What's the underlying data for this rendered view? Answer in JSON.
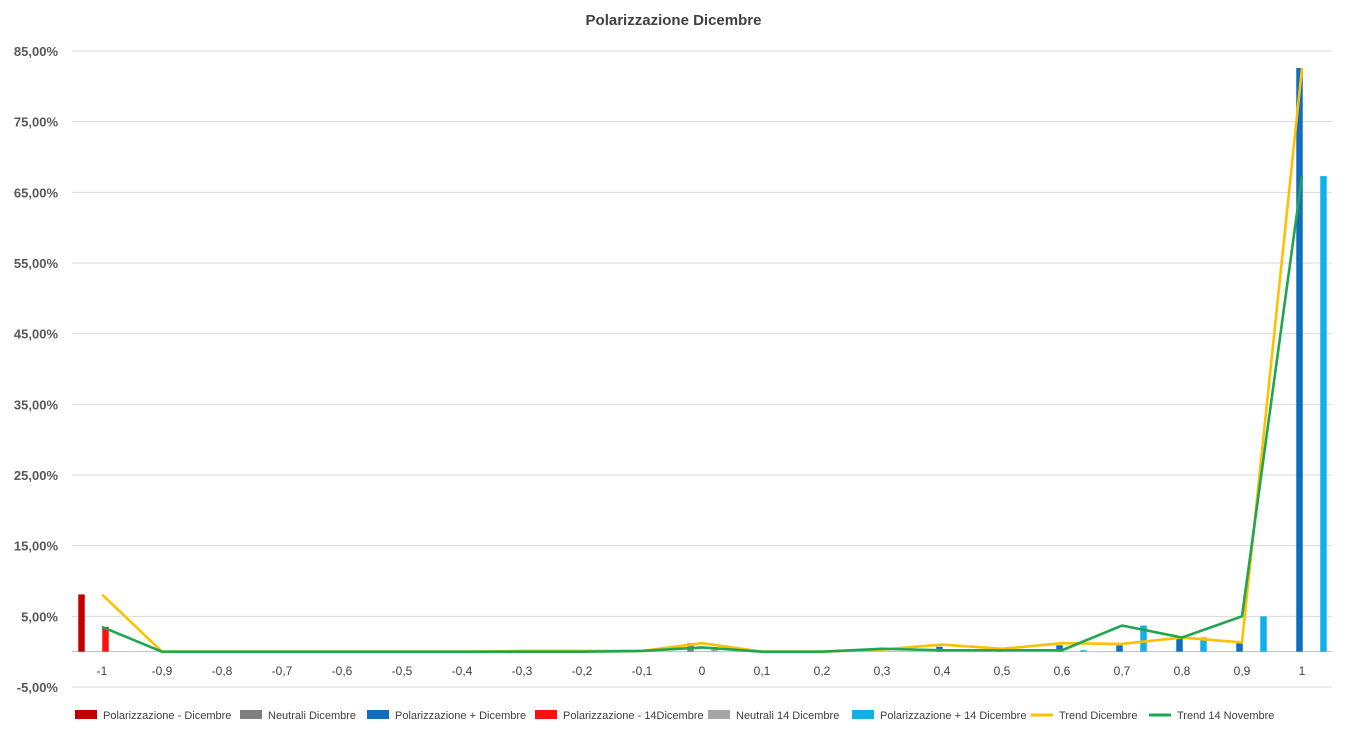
{
  "chart_data": {
    "type": "bar",
    "title": "Polarizzazione Dicembre",
    "xlabel": "",
    "ylabel": "",
    "ylim": [
      -5,
      85
    ],
    "y_ticks": [
      "85,00%",
      "75,00%",
      "65,00%",
      "55,00%",
      "45,00%",
      "35,00%",
      "25,00%",
      "15,00%",
      "5,00%",
      "-5,00%"
    ],
    "y_tick_values": [
      85,
      75,
      65,
      55,
      45,
      35,
      25,
      15,
      5,
      -5
    ],
    "categories": [
      "-1",
      "-0,9",
      "-0,8",
      "-0,7",
      "-0,6",
      "-0,5",
      "-0,4",
      "-0,3",
      "-0,2",
      "-0,1",
      "0",
      "0,1",
      "0,2",
      "0,3",
      "0,4",
      "0,5",
      "0,6",
      "0,7",
      "0,8",
      "0,9",
      "1"
    ],
    "grid": true,
    "legend_position": "bottom",
    "series": [
      {
        "name": "Polarizzazione - Dicembre",
        "kind": "bar",
        "color": "#C00000",
        "values": [
          8.1,
          0,
          0,
          0,
          0,
          0,
          0,
          0,
          0,
          0,
          0,
          0,
          0,
          0,
          0,
          0,
          0,
          0,
          0,
          0,
          0
        ]
      },
      {
        "name": "Neutrali Dicembre",
        "kind": "bar",
        "color": "#7F7F7F",
        "values": [
          0,
          0,
          0,
          0,
          0,
          0,
          0,
          0,
          0,
          0,
          1.2,
          0,
          0,
          0,
          0,
          0,
          0,
          0,
          0,
          0,
          0
        ]
      },
      {
        "name": "Polarizzazione + Dicembre",
        "kind": "bar",
        "color": "#0F6FBE",
        "values": [
          0,
          0,
          0,
          0,
          0,
          0,
          0,
          0,
          0,
          0,
          0,
          0,
          0,
          0,
          0.7,
          0.4,
          0.9,
          0.9,
          2.0,
          1.2,
          82.6
        ]
      },
      {
        "name": "Polarizzazione - 14Dicembre",
        "kind": "bar",
        "color": "#FF1010",
        "values": [
          3.5,
          0,
          0,
          0,
          0,
          0,
          0,
          0,
          0,
          0,
          0,
          0,
          0,
          0,
          0,
          0,
          0,
          0,
          0,
          0,
          0
        ]
      },
      {
        "name": "Neutrali 14 Dicembre",
        "kind": "bar",
        "color": "#A6A6A6",
        "values": [
          0,
          0,
          0,
          0,
          0,
          0,
          0,
          0,
          0,
          0,
          0.6,
          0,
          0,
          0,
          0,
          0,
          0,
          0,
          0,
          0,
          0
        ]
      },
      {
        "name": "Polarizzazione + 14 Dicembre",
        "kind": "bar",
        "color": "#12B0EA",
        "values": [
          0,
          0,
          0,
          0,
          0,
          0,
          0,
          0,
          0,
          0,
          0,
          0,
          0,
          0,
          0,
          0,
          0.2,
          3.7,
          2.0,
          5.0,
          67.3
        ]
      },
      {
        "name": "Trend Dicembre",
        "kind": "line",
        "color": "#FFC000",
        "values": [
          8.1,
          0,
          0,
          0,
          0,
          0,
          0,
          0.1,
          0.1,
          0.1,
          1.2,
          0,
          0,
          0.3,
          1.0,
          0.4,
          1.2,
          1.1,
          2.0,
          1.3,
          82.6
        ]
      },
      {
        "name": "Trend 14 Novembre",
        "kind": "line",
        "color": "#1FA650",
        "values": [
          3.5,
          0,
          0,
          0,
          0,
          0,
          0,
          0,
          0,
          0.1,
          0.6,
          0,
          0,
          0.4,
          0.2,
          0.2,
          0.2,
          3.7,
          2.0,
          5.0,
          67.3
        ]
      }
    ]
  }
}
